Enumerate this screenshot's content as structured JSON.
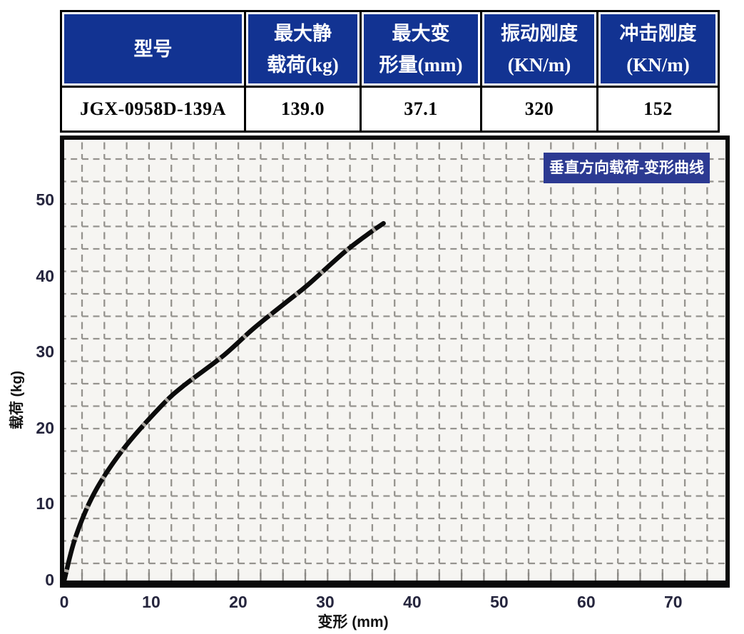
{
  "spec_table": {
    "columns": [
      {
        "header_lines": [
          "型号",
          ""
        ],
        "value": "JGX-0958D-139A"
      },
      {
        "header_lines": [
          "最大静",
          "载荷(kg)"
        ],
        "value": "139.0"
      },
      {
        "header_lines": [
          "最大变",
          "形量(mm)"
        ],
        "value": "37.1"
      },
      {
        "header_lines": [
          "振动刚度",
          "(KN/m)"
        ],
        "value": "320"
      },
      {
        "header_lines": [
          "冲击刚度",
          "(KN/m)"
        ],
        "value": "152"
      }
    ]
  },
  "chart_data": {
    "type": "line",
    "title": "垂直方向载荷-变形曲线",
    "xlabel": "变形 (mm)",
    "ylabel": "载荷 (kg)",
    "xlim": [
      0,
      76
    ],
    "ylim": [
      0,
      58
    ],
    "x_ticks": [
      0,
      10,
      20,
      30,
      40,
      50,
      60,
      70
    ],
    "y_ticks": [
      0,
      10,
      20,
      30,
      40,
      50
    ],
    "grid": true,
    "legend_position": "none",
    "series": [
      {
        "name": "垂直方向载荷-变形曲线",
        "points": [
          [
            0,
            0
          ],
          [
            1.3,
            5.7
          ],
          [
            3.5,
            11.6
          ],
          [
            6.8,
            17.3
          ],
          [
            11.1,
            22.9
          ],
          [
            13.8,
            25.7
          ],
          [
            18.2,
            29.5
          ],
          [
            21.8,
            33.2
          ],
          [
            25.6,
            36.7
          ],
          [
            28.0,
            38.9
          ],
          [
            32.3,
            43.3
          ],
          [
            35.3,
            45.9
          ],
          [
            36.7,
            47.0
          ]
        ]
      }
    ]
  },
  "colors": {
    "table_header_bg": "#123392",
    "table_header_text": "#ffffff",
    "badge_bg": "#2c3a92",
    "badge_text": "#ffffff",
    "curve": "#0c0c0c",
    "grid": "#95938e",
    "plot_bg": "#f6f5f2",
    "tick_text": "#25253d"
  }
}
